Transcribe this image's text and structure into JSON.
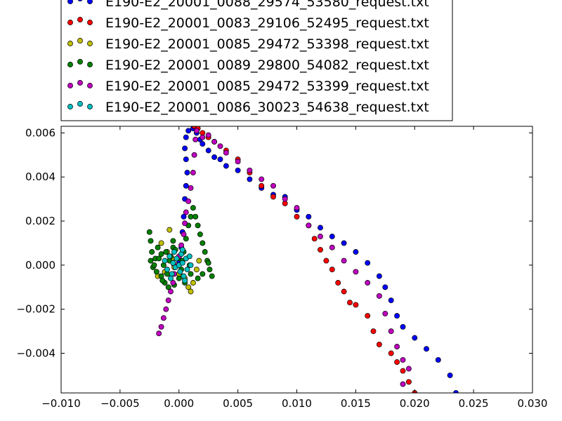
{
  "chart_data": {
    "type": "scatter",
    "title": "",
    "xlabel": "",
    "ylabel": "",
    "xlim": [
      -0.01,
      0.03
    ],
    "ylim": [
      -0.0058,
      0.0063
    ],
    "xticks": [
      -0.01,
      -0.005,
      0.0,
      0.005,
      0.01,
      0.015,
      0.02,
      0.025,
      0.03
    ],
    "xtick_labels": [
      "−0.010",
      "−0.005",
      "0.000",
      "0.005",
      "0.010",
      "0.015",
      "0.020",
      "0.025",
      "0.030"
    ],
    "yticks": [
      -0.004,
      -0.002,
      0.0,
      0.002,
      0.004,
      0.006
    ],
    "ytick_labels": [
      "−0.004",
      "−0.002",
      "0.000",
      "0.002",
      "0.004",
      "0.006"
    ],
    "grid": false,
    "legend_position": "top-left, above plot (partially cut off)",
    "series": [
      {
        "name": "E190-E2_20001_0088_29574_53580_request.txt",
        "color": "#0000ff",
        "points": [
          [
            -0.0004,
            0.0
          ],
          [
            0.0,
            0.0002
          ],
          [
            0.0002,
            0.0008
          ],
          [
            0.0003,
            0.0015
          ],
          [
            0.0004,
            0.0022
          ],
          [
            0.0005,
            0.003
          ],
          [
            0.0006,
            0.0036
          ],
          [
            0.0007,
            0.0042
          ],
          [
            0.0006,
            0.0048
          ],
          [
            0.0005,
            0.0053
          ],
          [
            0.0006,
            0.0058
          ],
          [
            0.0008,
            0.0061
          ],
          [
            0.0012,
            0.0062
          ],
          [
            0.0015,
            0.006
          ],
          [
            0.0018,
            0.0057
          ],
          [
            0.002,
            0.0055
          ],
          [
            0.0025,
            0.0052
          ],
          [
            0.003,
            0.0049
          ],
          [
            0.0035,
            0.0048
          ],
          [
            0.004,
            0.0045
          ],
          [
            0.005,
            0.0043
          ],
          [
            0.006,
            0.0039
          ],
          [
            0.007,
            0.0035
          ],
          [
            0.008,
            0.0032
          ],
          [
            0.009,
            0.0031
          ],
          [
            0.01,
            0.0025
          ],
          [
            0.011,
            0.0022
          ],
          [
            0.012,
            0.0017
          ],
          [
            0.013,
            0.0013
          ],
          [
            0.014,
            0.001
          ],
          [
            0.015,
            0.0006
          ],
          [
            0.016,
            0.0001
          ],
          [
            0.017,
            -0.0005
          ],
          [
            0.0175,
            -0.001
          ],
          [
            0.018,
            -0.0016
          ],
          [
            0.0185,
            -0.0023
          ],
          [
            0.019,
            -0.0028
          ],
          [
            0.02,
            -0.0033
          ],
          [
            0.021,
            -0.0038
          ],
          [
            0.022,
            -0.0043
          ],
          [
            0.023,
            -0.005
          ],
          [
            0.0235,
            -0.0058
          ]
        ]
      },
      {
        "name": "E190-E2_20001_0083_29106_52495_request.txt",
        "color": "#ff0000",
        "points": [
          [
            0.0013,
            0.0063
          ],
          [
            0.0016,
            0.0062
          ],
          [
            0.002,
            0.006
          ],
          [
            0.0025,
            0.0058
          ],
          [
            0.003,
            0.0056
          ],
          [
            0.004,
            0.0052
          ],
          [
            0.005,
            0.0048
          ],
          [
            0.006,
            0.0042
          ],
          [
            0.007,
            0.0036
          ],
          [
            0.008,
            0.0031
          ],
          [
            0.009,
            0.0028
          ],
          [
            0.01,
            0.0022
          ],
          [
            0.011,
            0.0018
          ],
          [
            0.0115,
            0.0012
          ],
          [
            0.012,
            0.0007
          ],
          [
            0.0125,
            0.0002
          ],
          [
            0.013,
            -0.0002
          ],
          [
            0.0135,
            -0.0008
          ],
          [
            0.014,
            -0.0012
          ],
          [
            0.0145,
            -0.0017
          ],
          [
            0.015,
            -0.0018
          ],
          [
            0.016,
            -0.0023
          ],
          [
            0.0165,
            -0.003
          ],
          [
            0.017,
            -0.0036
          ],
          [
            0.018,
            -0.004
          ],
          [
            0.0185,
            -0.0044
          ],
          [
            0.019,
            -0.0048
          ],
          [
            0.0195,
            -0.0053
          ],
          [
            0.02,
            -0.0058
          ]
        ]
      },
      {
        "name": "E190-E2_20001_0085_29472_53398_request.txt",
        "color": "#bfbf00",
        "points": [
          [
            -0.0008,
            0.0016
          ],
          [
            -0.0015,
            0.001
          ],
          [
            -0.001,
            0.0006
          ],
          [
            -0.0006,
            0.0003
          ],
          [
            -0.0004,
            -0.0001
          ],
          [
            0.0,
            -0.0004
          ],
          [
            0.0005,
            -0.0006
          ],
          [
            0.0008,
            -0.001
          ],
          [
            0.001,
            -0.0012
          ],
          [
            0.0012,
            -0.0008
          ],
          [
            0.0015,
            -0.0002
          ],
          [
            0.0017,
            0.0002
          ],
          [
            -0.0018,
            -0.0005
          ],
          [
            -0.0012,
            -0.0003
          ]
        ]
      },
      {
        "name": "E190-E2_20001_0089_29800_54082_request.txt",
        "color": "#008000",
        "points": [
          [
            -0.0025,
            0.0015
          ],
          [
            -0.0024,
            0.0011
          ],
          [
            -0.0023,
            0.0006
          ],
          [
            -0.0024,
            0.0002
          ],
          [
            -0.0022,
            -0.0001
          ],
          [
            -0.002,
            0.0003
          ],
          [
            -0.0018,
            0.0008
          ],
          [
            -0.0015,
            0.0005
          ],
          [
            -0.0013,
            0.0
          ],
          [
            -0.0015,
            -0.0005
          ],
          [
            -0.0012,
            -0.0008
          ],
          [
            -0.001,
            -0.0004
          ],
          [
            -0.0008,
            0.0002
          ],
          [
            -0.0005,
            0.0008
          ],
          [
            -0.0005,
            0.0011
          ],
          [
            -0.0003,
            0.0007
          ],
          [
            0.0,
            0.0003
          ],
          [
            0.0002,
            -0.0002
          ],
          [
            0.0004,
            0.0006
          ],
          [
            0.0006,
            0.0012
          ],
          [
            0.0008,
            0.0018
          ],
          [
            0.001,
            0.0022
          ],
          [
            0.0012,
            0.0026
          ],
          [
            0.0014,
            0.0022
          ],
          [
            0.0016,
            0.0018
          ],
          [
            0.0018,
            0.0014
          ],
          [
            0.002,
            0.001
          ],
          [
            0.0022,
            0.0006
          ],
          [
            0.0024,
            0.0002
          ],
          [
            0.0026,
            -0.0002
          ],
          [
            0.0028,
            -0.0005
          ],
          [
            0.0025,
            0.0001
          ],
          [
            0.002,
            -0.0004
          ],
          [
            0.0016,
            -0.0006
          ],
          [
            0.001,
            -0.0004
          ],
          [
            0.0005,
            -0.0008
          ],
          [
            0.0,
            -0.0006
          ],
          [
            -0.0004,
            -0.0009
          ],
          [
            -0.0009,
            -0.001
          ],
          [
            -0.0014,
            -0.0007
          ],
          [
            -0.0019,
            -0.0003
          ],
          [
            -0.0021,
            0.0
          ],
          [
            -0.0017,
            0.0003
          ],
          [
            -0.0011,
            0.0006
          ],
          [
            -0.0007,
            0.0004
          ],
          [
            0.0003,
            0.0002
          ],
          [
            0.0009,
            0.0
          ]
        ]
      },
      {
        "name": "E190-E2_20001_0085_29472_53399_request.txt",
        "color": "#bf00bf",
        "points": [
          [
            -0.0017,
            -0.0031
          ],
          [
            -0.0015,
            -0.0028
          ],
          [
            -0.0013,
            -0.0024
          ],
          [
            -0.0011,
            -0.002
          ],
          [
            -0.0009,
            -0.0016
          ],
          [
            -0.0007,
            -0.0012
          ],
          [
            -0.0005,
            -0.0008
          ],
          [
            -0.0004,
            -0.0004
          ],
          [
            -0.0002,
            0.0
          ],
          [
            0.0,
            0.0004
          ],
          [
            0.0002,
            0.0009
          ],
          [
            0.0004,
            0.0014
          ],
          [
            0.0005,
            0.0019
          ],
          [
            0.0006,
            0.0024
          ],
          [
            0.0008,
            0.0029
          ],
          [
            0.001,
            0.0035
          ],
          [
            0.0012,
            0.0042
          ],
          [
            0.0013,
            0.005
          ],
          [
            0.0014,
            0.0057
          ],
          [
            0.0015,
            0.0061
          ],
          [
            0.002,
            0.0058
          ],
          [
            0.0025,
            0.0059
          ],
          [
            0.003,
            0.0056
          ],
          [
            0.0035,
            0.0054
          ],
          [
            0.004,
            0.0051
          ],
          [
            0.005,
            0.0047
          ],
          [
            0.006,
            0.0043
          ],
          [
            0.007,
            0.0039
          ],
          [
            0.008,
            0.0036
          ],
          [
            0.009,
            0.003
          ],
          [
            0.01,
            0.0026
          ],
          [
            0.011,
            0.0018
          ],
          [
            0.012,
            0.0013
          ],
          [
            0.013,
            0.0008
          ],
          [
            0.014,
            0.0002
          ],
          [
            0.015,
            -0.0003
          ],
          [
            0.016,
            -0.0008
          ],
          [
            0.017,
            -0.0014
          ],
          [
            0.0175,
            -0.0022
          ],
          [
            0.018,
            -0.003
          ],
          [
            0.0185,
            -0.0037
          ],
          [
            0.019,
            -0.0043
          ],
          [
            0.0195,
            -0.0047
          ],
          [
            0.019,
            -0.0054
          ]
        ]
      },
      {
        "name": "E190-E2_20001_0086_30023_54638_request.txt",
        "color": "#00bfbf",
        "points": [
          [
            -0.0012,
            0.0002
          ],
          [
            -0.001,
            -0.0002
          ],
          [
            -0.0008,
            0.0004
          ],
          [
            -0.0006,
            -0.0004
          ],
          [
            -0.0004,
            0.0006
          ],
          [
            -0.0003,
            -0.0001
          ],
          [
            -0.0002,
            0.0003
          ],
          [
            0.0,
            0.0
          ],
          [
            0.0001,
            -0.0003
          ],
          [
            0.0002,
            0.0005
          ],
          [
            0.0003,
            0.0001
          ],
          [
            0.0004,
            -0.0005
          ],
          [
            0.0006,
            0.0003
          ],
          [
            0.0007,
            -0.0002
          ],
          [
            0.0009,
            0.0004
          ],
          [
            0.001,
            0.0
          ],
          [
            -0.0005,
            0.0001
          ],
          [
            0.0003,
            0.0007
          ],
          [
            -0.0007,
            -0.0006
          ],
          [
            0.0005,
            -0.0007
          ]
        ]
      }
    ]
  }
}
